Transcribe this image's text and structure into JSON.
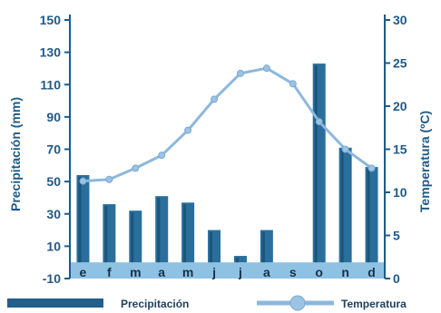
{
  "chart_data": {
    "type": "bar+line",
    "categories": [
      "e",
      "f",
      "m",
      "a",
      "m",
      "j",
      "j",
      "a",
      "s",
      "o",
      "n",
      "d"
    ],
    "series": [
      {
        "name": "Precipitación",
        "type": "bar",
        "axis": "left",
        "values": [
          54,
          36,
          32,
          41,
          37,
          20,
          4,
          20,
          0,
          123,
          71,
          59
        ]
      },
      {
        "name": "Temperatura",
        "type": "line",
        "axis": "right",
        "values": [
          11.3,
          11.5,
          12.8,
          14.3,
          17.2,
          20.8,
          23.8,
          24.4,
          22.6,
          18.2,
          15.0,
          12.8
        ]
      }
    ],
    "ylabel_left": "Precipitación (mm)",
    "ylabel_right": "Temperatura (ºC)",
    "ylim_left": [
      -10,
      150
    ],
    "ylim_right": [
      0,
      30
    ],
    "yticks_left": [
      -10,
      10,
      30,
      50,
      70,
      90,
      110,
      130,
      150
    ],
    "yticks_right": [
      0,
      5,
      10,
      15,
      20,
      25,
      30
    ],
    "ytick_labels_left": [
      "-10",
      "10",
      "30",
      "50",
      "70",
      "90",
      "110",
      "130",
      "150"
    ],
    "ytick_labels_right": [
      "0",
      "5",
      "10",
      "15",
      "20",
      "25",
      "30"
    ],
    "grid": false,
    "legend_position": "bottom",
    "colors": {
      "bar": "#2a6f9c",
      "bar_dark": "#0f3f63",
      "line": "#8db8dc",
      "marker": "#9cc3e3",
      "axis": "#1f5a86",
      "category_band": "#8fc1e3"
    }
  }
}
